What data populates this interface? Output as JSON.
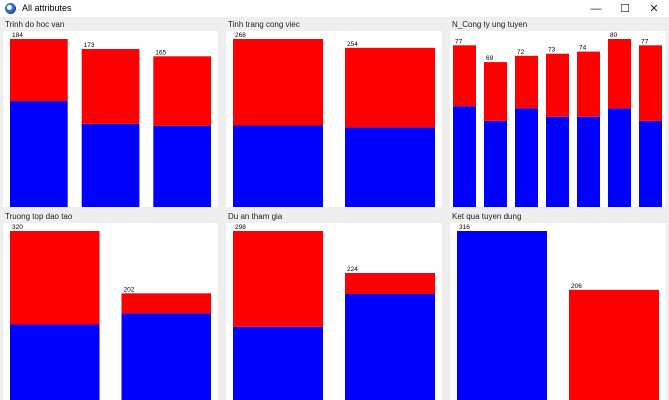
{
  "window": {
    "title": "All attributes",
    "controls": {
      "minimize": "—",
      "maximize": "☐",
      "close": "✕"
    },
    "app_icon": "app-logo-icon"
  },
  "colors": {
    "segment_a": "#0000ff",
    "segment_b": "#ff0000"
  },
  "chart_data": [
    {
      "type": "bar",
      "title": "Trinh do hoc van",
      "stacked": true,
      "ylim": [
        0,
        184
      ],
      "totals": [
        184,
        173,
        165
      ],
      "series": [
        {
          "values": [
            116,
            91,
            89
          ],
          "color": "#0000ff"
        },
        {
          "values": [
            68,
            82,
            76
          ],
          "color": "#ff0000"
        }
      ]
    },
    {
      "type": "bar",
      "title": "Tinh trang cong viec",
      "stacked": true,
      "ylim": [
        0,
        268
      ],
      "totals": [
        268,
        254
      ],
      "series": [
        {
          "values": [
            130,
            127
          ],
          "color": "#0000ff"
        },
        {
          "values": [
            138,
            127
          ],
          "color": "#ff0000"
        }
      ]
    },
    {
      "type": "bar",
      "title": "N_Cong ty ung tuyen",
      "stacked": true,
      "ylim": [
        0,
        80
      ],
      "totals": [
        77,
        69,
        72,
        73,
        74,
        80,
        77
      ],
      "series": [
        {
          "values": [
            48,
            41,
            47,
            43,
            43,
            47,
            41
          ],
          "color": "#0000ff"
        },
        {
          "values": [
            29,
            28,
            25,
            30,
            31,
            33,
            36
          ],
          "color": "#ff0000"
        }
      ]
    },
    {
      "type": "bar",
      "title": "Truong top dao tao",
      "stacked": true,
      "ylim": [
        0,
        320
      ],
      "totals": [
        320,
        202
      ],
      "series": [
        {
          "values": [
            143,
            164
          ],
          "color": "#0000ff"
        },
        {
          "values": [
            177,
            38
          ],
          "color": "#ff0000"
        }
      ]
    },
    {
      "type": "bar",
      "title": "Du an tham gia",
      "stacked": true,
      "ylim": [
        0,
        298
      ],
      "totals": [
        298,
        224
      ],
      "series": [
        {
          "values": [
            129,
            187
          ],
          "color": "#0000ff"
        },
        {
          "values": [
            169,
            37
          ],
          "color": "#ff0000"
        }
      ]
    },
    {
      "type": "bar",
      "title": "Ket qua tuyen dung",
      "stacked": true,
      "ylim": [
        0,
        316
      ],
      "totals": [
        316,
        206
      ],
      "series": [
        {
          "values": [
            316,
            0
          ],
          "color": "#0000ff"
        },
        {
          "values": [
            0,
            206
          ],
          "color": "#ff0000"
        }
      ]
    }
  ]
}
